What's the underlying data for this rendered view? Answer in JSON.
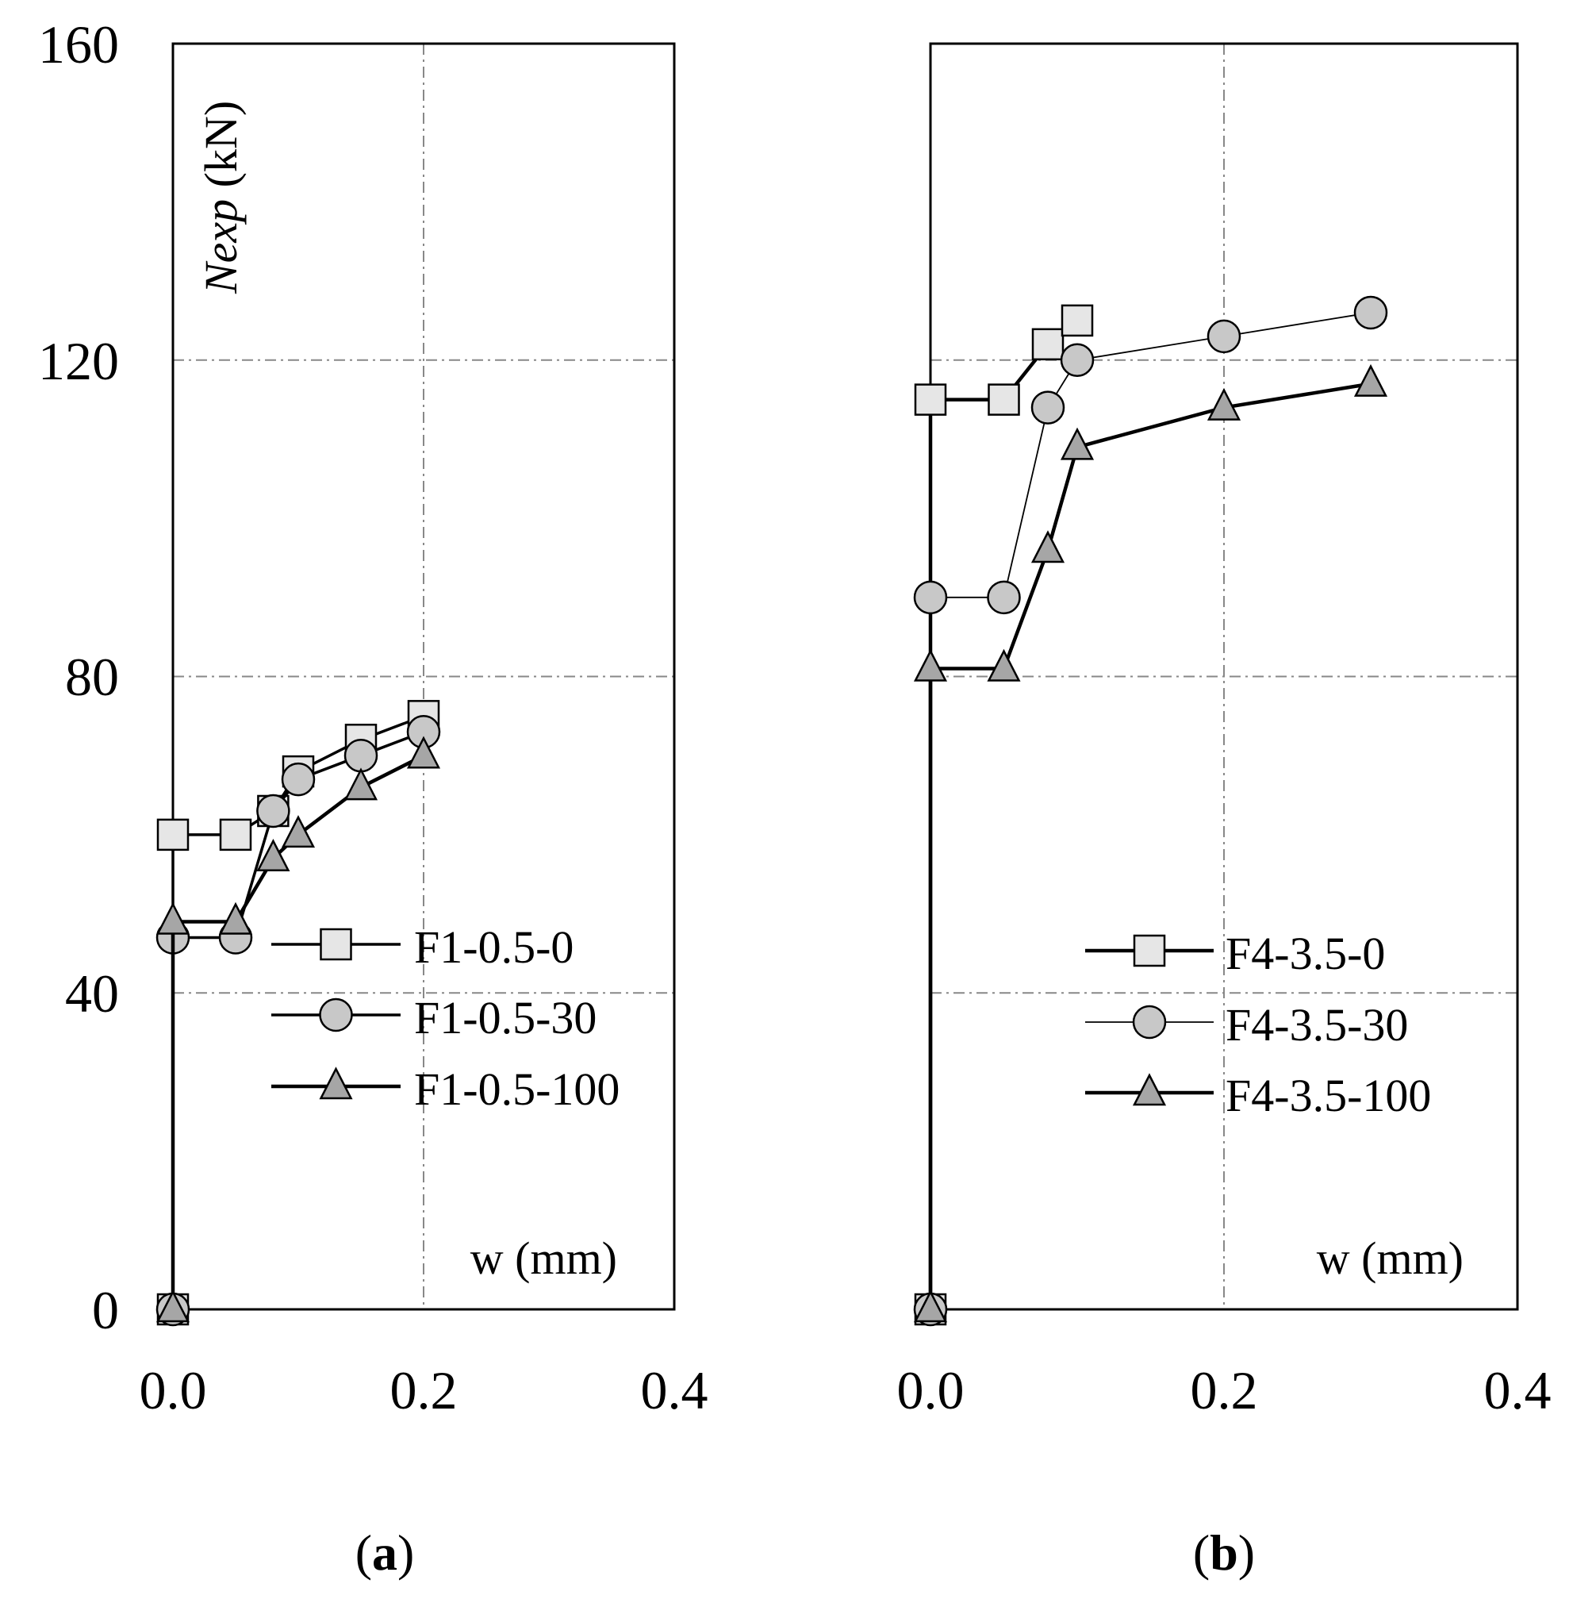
{
  "chart_data": [
    {
      "type": "line",
      "panel_label": "(a)",
      "panel_letter": "a",
      "xlabel": "w (mm)",
      "ylabel_italic": "Nexp",
      "ylabel_unit": " (kN)",
      "xlim": [
        0,
        0.4
      ],
      "ylim": [
        0,
        160
      ],
      "xticks": [
        0,
        0.2,
        0.4
      ],
      "xtick_labels": [
        "0.0",
        "0.2",
        "0.4"
      ],
      "yticks": [
        0,
        40,
        80,
        120,
        160
      ],
      "ytick_labels": [
        "0",
        "40",
        "80",
        "120",
        "160"
      ],
      "grid": true,
      "legend_position": "center-right",
      "series": [
        {
          "name": "F1-0.5-0",
          "marker": "square",
          "fill": "#e6e6e6",
          "x": [
            0,
            0,
            0.05,
            0.08,
            0.1,
            0.15,
            0.2
          ],
          "y": [
            0,
            60,
            60,
            63,
            68,
            72,
            75
          ]
        },
        {
          "name": "F1-0.5-30",
          "marker": "circle",
          "fill": "#c8c8c8",
          "x": [
            0,
            0,
            0.05,
            0.08,
            0.1,
            0.15,
            0.2
          ],
          "y": [
            0,
            47,
            47,
            63,
            67,
            70,
            73
          ]
        },
        {
          "name": "F1-0.5-100",
          "marker": "triangle",
          "fill": "#a6a6a6",
          "x": [
            0,
            0,
            0.05,
            0.08,
            0.1,
            0.15,
            0.2
          ],
          "y": [
            0,
            49,
            49,
            57,
            60,
            66,
            70
          ]
        }
      ]
    },
    {
      "type": "line",
      "panel_label": "(b)",
      "panel_letter": "b",
      "xlabel": "w (mm)",
      "xlim": [
        0,
        0.4
      ],
      "ylim": [
        0,
        160
      ],
      "xticks": [
        0,
        0.2,
        0.4
      ],
      "xtick_labels": [
        "0.0",
        "0.2",
        "0.4"
      ],
      "grid": true,
      "legend_position": "center-right",
      "series": [
        {
          "name": "F4-3.5-0",
          "marker": "square",
          "fill": "#e6e6e6",
          "x": [
            0,
            0,
            0.05,
            0.08,
            0.1
          ],
          "y": [
            0,
            115,
            115,
            122,
            125
          ]
        },
        {
          "name": "F4-3.5-30",
          "marker": "circle",
          "fill": "#c8c8c8",
          "x": [
            0,
            0,
            0.05,
            0.08,
            0.1,
            0.2,
            0.3
          ],
          "y": [
            0,
            90,
            90,
            114,
            120,
            123,
            126
          ]
        },
        {
          "name": "F4-3.5-100",
          "marker": "triangle",
          "fill": "#a6a6a6",
          "x": [
            0,
            0,
            0.05,
            0.08,
            0.1,
            0.2,
            0.3
          ],
          "y": [
            0,
            81,
            81,
            96,
            109,
            114,
            117
          ]
        }
      ]
    }
  ]
}
